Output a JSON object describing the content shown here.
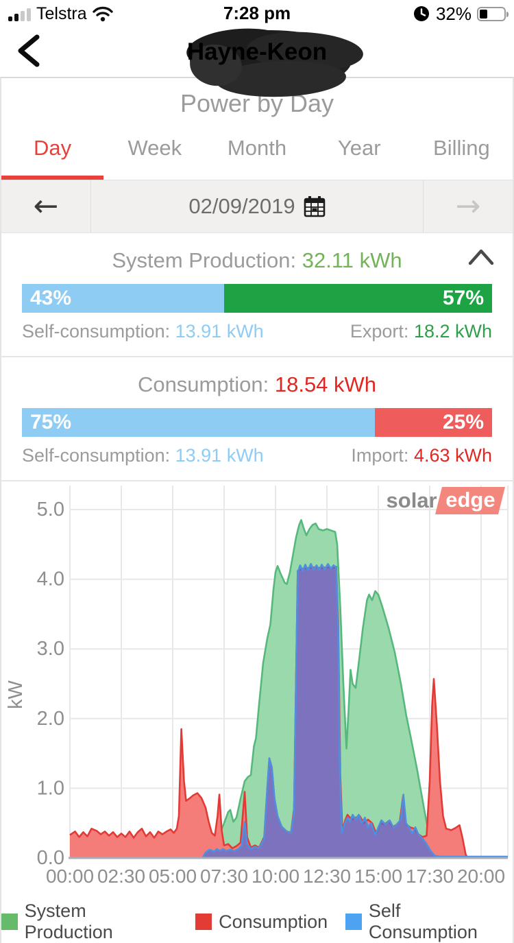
{
  "status_bar": {
    "carrier": "Telstra",
    "time": "7:28 pm",
    "battery_pct": "32%"
  },
  "header": {
    "title": "Hayne-Keon"
  },
  "page": {
    "title": "Power by Day"
  },
  "tabs": [
    {
      "label": "Day",
      "active": true
    },
    {
      "label": "Week",
      "active": false
    },
    {
      "label": "Month",
      "active": false
    },
    {
      "label": "Year",
      "active": false
    },
    {
      "label": "Billing",
      "active": false
    }
  ],
  "date_nav": {
    "date": "02/09/2019"
  },
  "production": {
    "label": "System Production:",
    "value": "32.11 kWh",
    "self_pct": "43%",
    "self_pct_num": 43,
    "export_pct": "57%",
    "self_label": "Self-consumption:",
    "self_value": "13.91 kWh",
    "export_label": "Export:",
    "export_value": "18.2 kWh"
  },
  "consumption": {
    "label": "Consumption:",
    "value": "18.54 kWh",
    "self_pct": "75%",
    "self_pct_num": 75,
    "import_pct": "25%",
    "self_label": "Self-consumption:",
    "self_value": "13.91 kWh",
    "import_label": "Import:",
    "import_value": "4.63 kWh"
  },
  "logo": {
    "part1": "solar",
    "part2": "edge"
  },
  "colors": {
    "accent_red": "#e8413c",
    "bar_blue": "#8fccf3",
    "bar_green": "#1ea344",
    "bar_red": "#ef5c5c",
    "prod_fill": "#9ad9ac",
    "prod_stroke": "#57b87d",
    "cons_fill": "#f47d7a",
    "cons_stroke": "#e23b36",
    "self_fill": "rgba(77,110,216,0.72)",
    "self_stroke": "#4f8fe0",
    "axis_line": "#a5aeba",
    "grid": "#e8e8e8",
    "tick_text": "#8e8e8e"
  },
  "legend": [
    {
      "label": "System Production",
      "color": "#66bb6a"
    },
    {
      "label": "Consumption",
      "color": "#e33b36"
    },
    {
      "label": "Self Consumption",
      "color": "#4da3f2"
    }
  ],
  "chart_data": {
    "type": "area",
    "ylabel": "kW",
    "ylim": [
      0,
      5.35
    ],
    "x_range_hours": [
      0,
      21.3
    ],
    "yticks": [
      {
        "v": 0,
        "label": "0.0"
      },
      {
        "v": 1,
        "label": "1.0"
      },
      {
        "v": 2,
        "label": "2.0"
      },
      {
        "v": 3,
        "label": "3.0"
      },
      {
        "v": 4,
        "label": "4.0"
      },
      {
        "v": 5,
        "label": "5.0"
      }
    ],
    "xticks": [
      {
        "h": 0,
        "label": "00:00"
      },
      {
        "h": 2.5,
        "label": "02:30"
      },
      {
        "h": 5,
        "label": "05:00"
      },
      {
        "h": 7.5,
        "label": "07:30"
      },
      {
        "h": 10,
        "label": "10:00"
      },
      {
        "h": 12.5,
        "label": "12:30"
      },
      {
        "h": 15,
        "label": "15:00"
      },
      {
        "h": 17.5,
        "label": "17:30"
      },
      {
        "h": 20,
        "label": "20:00"
      }
    ],
    "grid": true,
    "legend_position": "bottom",
    "series": [
      {
        "name": "System Production",
        "fill": "prod_fill",
        "stroke": "prod_stroke",
        "points": [
          [
            6.6,
            0
          ],
          [
            6.75,
            0.06
          ],
          [
            6.9,
            0.1
          ],
          [
            7.1,
            0.2
          ],
          [
            7.3,
            0.35
          ],
          [
            7.5,
            0.5
          ],
          [
            7.7,
            0.66
          ],
          [
            7.8,
            0.69
          ],
          [
            7.95,
            0.52
          ],
          [
            8.1,
            0.58
          ],
          [
            8.3,
            0.85
          ],
          [
            8.5,
            1.1
          ],
          [
            8.65,
            1.16
          ],
          [
            8.8,
            1.19
          ],
          [
            8.95,
            1.6
          ],
          [
            9.05,
            1.72
          ],
          [
            9.2,
            2.2
          ],
          [
            9.4,
            2.8
          ],
          [
            9.6,
            3.15
          ],
          [
            9.75,
            3.35
          ],
          [
            9.9,
            3.85
          ],
          [
            10.0,
            4.1
          ],
          [
            10.1,
            4.19
          ],
          [
            10.25,
            4.08
          ],
          [
            10.45,
            3.95
          ],
          [
            10.55,
            3.93
          ],
          [
            10.7,
            4.1
          ],
          [
            10.85,
            4.35
          ],
          [
            11.0,
            4.6
          ],
          [
            11.15,
            4.78
          ],
          [
            11.25,
            4.85
          ],
          [
            11.35,
            4.75
          ],
          [
            11.5,
            4.63
          ],
          [
            11.65,
            4.72
          ],
          [
            11.8,
            4.78
          ],
          [
            11.95,
            4.8
          ],
          [
            12.1,
            4.72
          ],
          [
            12.3,
            4.7
          ],
          [
            12.5,
            4.72
          ],
          [
            12.7,
            4.7
          ],
          [
            12.9,
            4.68
          ],
          [
            13.0,
            4.5
          ],
          [
            13.15,
            3.6
          ],
          [
            13.3,
            2.5
          ],
          [
            13.45,
            1.57
          ],
          [
            13.55,
            2.1
          ],
          [
            13.65,
            2.7
          ],
          [
            13.75,
            2.5
          ],
          [
            13.9,
            2.44
          ],
          [
            14.05,
            2.8
          ],
          [
            14.25,
            3.3
          ],
          [
            14.45,
            3.7
          ],
          [
            14.55,
            3.78
          ],
          [
            14.7,
            3.7
          ],
          [
            14.85,
            3.83
          ],
          [
            15.0,
            3.78
          ],
          [
            15.2,
            3.6
          ],
          [
            15.5,
            3.3
          ],
          [
            15.8,
            2.95
          ],
          [
            16.1,
            2.5
          ],
          [
            16.35,
            2.06
          ],
          [
            16.6,
            1.7
          ],
          [
            16.9,
            1.25
          ],
          [
            17.2,
            0.75
          ],
          [
            17.45,
            0.35
          ],
          [
            17.6,
            0.12
          ],
          [
            17.7,
            0
          ]
        ]
      },
      {
        "name": "Consumption",
        "fill": "cons_fill",
        "stroke": "cons_stroke",
        "points": [
          [
            0,
            0.33
          ],
          [
            0.25,
            0.38
          ],
          [
            0.45,
            0.3
          ],
          [
            0.65,
            0.37
          ],
          [
            0.85,
            0.31
          ],
          [
            1.05,
            0.42
          ],
          [
            1.3,
            0.39
          ],
          [
            1.5,
            0.34
          ],
          [
            1.7,
            0.38
          ],
          [
            1.9,
            0.32
          ],
          [
            2.1,
            0.37
          ],
          [
            2.3,
            0.3
          ],
          [
            2.5,
            0.35
          ],
          [
            2.7,
            0.3
          ],
          [
            2.9,
            0.38
          ],
          [
            3.1,
            0.29
          ],
          [
            3.3,
            0.37
          ],
          [
            3.5,
            0.42
          ],
          [
            3.7,
            0.31
          ],
          [
            3.9,
            0.37
          ],
          [
            4.1,
            0.29
          ],
          [
            4.3,
            0.38
          ],
          [
            4.5,
            0.34
          ],
          [
            4.7,
            0.38
          ],
          [
            4.9,
            0.41
          ],
          [
            5.05,
            0.36
          ],
          [
            5.2,
            0.42
          ],
          [
            5.3,
            0.6
          ],
          [
            5.42,
            1.85
          ],
          [
            5.55,
            1.1
          ],
          [
            5.65,
            0.82
          ],
          [
            5.8,
            0.85
          ],
          [
            6.0,
            0.9
          ],
          [
            6.2,
            0.93
          ],
          [
            6.4,
            0.86
          ],
          [
            6.6,
            0.72
          ],
          [
            6.75,
            0.52
          ],
          [
            6.9,
            0.36
          ],
          [
            7.05,
            0.32
          ],
          [
            7.18,
            0.6
          ],
          [
            7.27,
            0.91
          ],
          [
            7.38,
            0.4
          ],
          [
            7.5,
            0.18
          ],
          [
            7.7,
            0.2
          ],
          [
            7.9,
            0.14
          ],
          [
            8.1,
            0.17
          ],
          [
            8.3,
            0.22
          ],
          [
            8.5,
            0.95
          ],
          [
            8.62,
            0.3
          ],
          [
            8.8,
            0.15
          ],
          [
            9.0,
            0.18
          ],
          [
            9.2,
            0.15
          ],
          [
            9.45,
            0.3
          ],
          [
            9.6,
            1.0
          ],
          [
            9.7,
            1.43
          ],
          [
            9.82,
            1.3
          ],
          [
            9.95,
            0.85
          ],
          [
            10.1,
            0.6
          ],
          [
            10.3,
            0.45
          ],
          [
            10.55,
            0.38
          ],
          [
            10.75,
            0.36
          ],
          [
            10.9,
            0.7
          ],
          [
            11.0,
            2.6
          ],
          [
            11.08,
            4.12
          ],
          [
            11.3,
            4.15
          ],
          [
            11.6,
            4.16
          ],
          [
            11.9,
            4.17
          ],
          [
            12.2,
            4.16
          ],
          [
            12.5,
            4.17
          ],
          [
            12.8,
            4.16
          ],
          [
            12.95,
            4.18
          ],
          [
            13.05,
            3.4
          ],
          [
            13.15,
            1.2
          ],
          [
            13.25,
            0.4
          ],
          [
            13.4,
            0.55
          ],
          [
            13.5,
            0.62
          ],
          [
            13.62,
            0.58
          ],
          [
            13.75,
            0.55
          ],
          [
            13.9,
            0.58
          ],
          [
            14.1,
            0.6
          ],
          [
            14.3,
            0.5
          ],
          [
            14.5,
            0.55
          ],
          [
            14.7,
            0.5
          ],
          [
            14.9,
            0.35
          ],
          [
            15.1,
            0.5
          ],
          [
            15.3,
            0.48
          ],
          [
            15.5,
            0.53
          ],
          [
            15.7,
            0.44
          ],
          [
            15.9,
            0.48
          ],
          [
            16.05,
            0.53
          ],
          [
            16.2,
            0.88
          ],
          [
            16.35,
            0.48
          ],
          [
            16.55,
            0.44
          ],
          [
            16.75,
            0.42
          ],
          [
            16.95,
            0.34
          ],
          [
            17.15,
            0.3
          ],
          [
            17.35,
            0.32
          ],
          [
            17.5,
            1.1
          ],
          [
            17.62,
            2.2
          ],
          [
            17.7,
            2.57
          ],
          [
            17.85,
            1.9
          ],
          [
            18.0,
            1.1
          ],
          [
            18.15,
            0.6
          ],
          [
            18.3,
            0.42
          ],
          [
            18.55,
            0.4
          ],
          [
            18.75,
            0.43
          ],
          [
            18.95,
            0.47
          ],
          [
            19.1,
            0.28
          ],
          [
            19.25,
            0.05
          ],
          [
            19.35,
            0
          ],
          [
            21.3,
            0
          ]
        ]
      },
      {
        "name": "Self Consumption",
        "fill": "self_fill",
        "stroke": "self_stroke",
        "points": [
          [
            6.45,
            0
          ],
          [
            6.6,
            0.08
          ],
          [
            6.8,
            0.12
          ],
          [
            7.0,
            0.09
          ],
          [
            7.15,
            0.13
          ],
          [
            7.3,
            0.1
          ],
          [
            7.45,
            0.13
          ],
          [
            7.6,
            0.1
          ],
          [
            7.8,
            0.12
          ],
          [
            8.0,
            0.1
          ],
          [
            8.2,
            0.13
          ],
          [
            8.35,
            0.18
          ],
          [
            8.5,
            0.52
          ],
          [
            8.62,
            0.2
          ],
          [
            8.8,
            0.13
          ],
          [
            9.0,
            0.16
          ],
          [
            9.2,
            0.14
          ],
          [
            9.45,
            0.28
          ],
          [
            9.6,
            1.0
          ],
          [
            9.7,
            1.43
          ],
          [
            9.82,
            1.3
          ],
          [
            9.95,
            0.85
          ],
          [
            10.1,
            0.6
          ],
          [
            10.3,
            0.45
          ],
          [
            10.55,
            0.38
          ],
          [
            10.75,
            0.35
          ],
          [
            10.9,
            0.65
          ],
          [
            11.0,
            2.55
          ],
          [
            11.08,
            4.1
          ],
          [
            11.2,
            4.2
          ],
          [
            11.32,
            4.12
          ],
          [
            11.45,
            4.21
          ],
          [
            11.58,
            4.13
          ],
          [
            11.72,
            4.22
          ],
          [
            11.85,
            4.14
          ],
          [
            12.0,
            4.2
          ],
          [
            12.12,
            4.13
          ],
          [
            12.25,
            4.21
          ],
          [
            12.4,
            4.14
          ],
          [
            12.55,
            4.22
          ],
          [
            12.7,
            4.15
          ],
          [
            12.82,
            4.2
          ],
          [
            12.95,
            4.17
          ],
          [
            13.05,
            3.3
          ],
          [
            13.12,
            1.4
          ],
          [
            13.22,
            0.35
          ],
          [
            13.35,
            0.48
          ],
          [
            13.5,
            0.58
          ],
          [
            13.62,
            0.52
          ],
          [
            13.75,
            0.62
          ],
          [
            13.9,
            0.55
          ],
          [
            14.05,
            0.62
          ],
          [
            14.2,
            0.5
          ],
          [
            14.35,
            0.58
          ],
          [
            14.5,
            0.44
          ],
          [
            14.65,
            0.5
          ],
          [
            14.85,
            0.33
          ],
          [
            15.0,
            0.44
          ],
          [
            15.15,
            0.54
          ],
          [
            15.35,
            0.48
          ],
          [
            15.55,
            0.54
          ],
          [
            15.75,
            0.43
          ],
          [
            15.95,
            0.5
          ],
          [
            16.1,
            0.55
          ],
          [
            16.22,
            0.91
          ],
          [
            16.35,
            0.5
          ],
          [
            16.5,
            0.44
          ],
          [
            16.65,
            0.35
          ],
          [
            16.8,
            0.44
          ],
          [
            16.95,
            0.34
          ],
          [
            17.15,
            0.28
          ],
          [
            17.35,
            0.2
          ],
          [
            17.55,
            0.1
          ],
          [
            17.75,
            0.03
          ],
          [
            18.0,
            0.02
          ],
          [
            21.3,
            0.02
          ]
        ]
      }
    ]
  }
}
